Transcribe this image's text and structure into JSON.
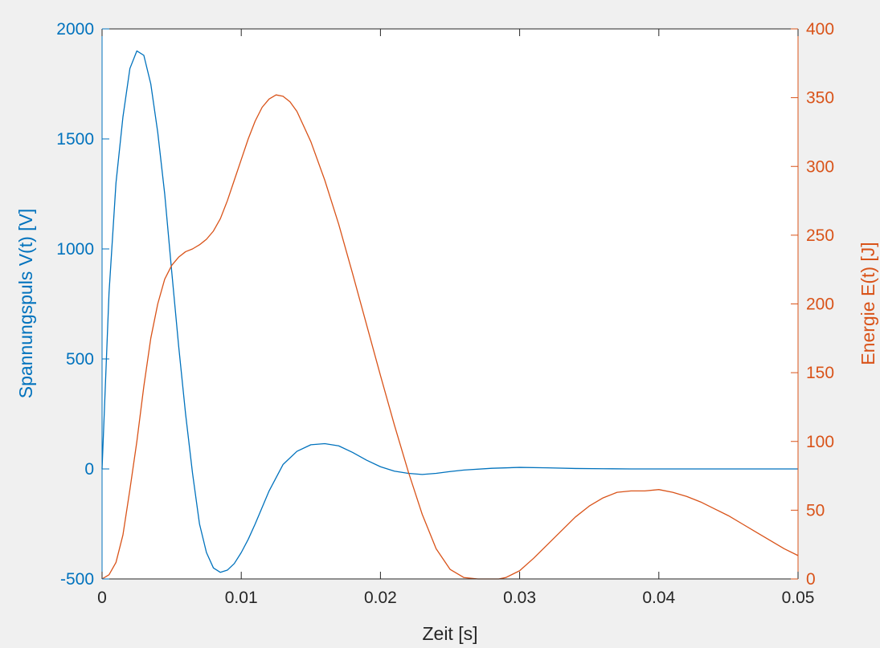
{
  "chart_data": {
    "type": "line",
    "title": "",
    "xlabel": "Zeit [s]",
    "ylabel_left": "Spannungspuls V(t) [V]",
    "ylabel_right": "Energie E(t) [J]",
    "xlim": [
      0,
      0.05
    ],
    "ylim_left": [
      -500,
      2000
    ],
    "ylim_right": [
      0,
      400
    ],
    "x_ticks": [
      "0",
      "0.01",
      "0.02",
      "0.03",
      "0.04",
      "0.05"
    ],
    "y_left_ticks": [
      "-500",
      "0",
      "500",
      "1000",
      "1500",
      "2000"
    ],
    "y_right_ticks": [
      "0",
      "50",
      "100",
      "150",
      "200",
      "250",
      "300",
      "350",
      "400"
    ],
    "grid": false,
    "colors": {
      "left": "#0072bd",
      "right": "#d95319"
    },
    "series": [
      {
        "axis": "left",
        "x": [
          0,
          0.0005,
          0.001,
          0.0015,
          0.002,
          0.0025,
          0.003,
          0.0035,
          0.004,
          0.0045,
          0.005,
          0.0055,
          0.006,
          0.0065,
          0.007,
          0.0075,
          0.008,
          0.0085,
          0.009,
          0.0095,
          0.01,
          0.0105,
          0.011,
          0.012,
          0.013,
          0.014,
          0.015,
          0.016,
          0.017,
          0.018,
          0.019,
          0.02,
          0.021,
          0.022,
          0.023,
          0.024,
          0.025,
          0.026,
          0.028,
          0.03,
          0.032,
          0.034,
          0.036,
          0.038,
          0.04,
          0.045,
          0.05
        ],
        "y": [
          0,
          800,
          1300,
          1600,
          1820,
          1900,
          1880,
          1750,
          1530,
          1250,
          900,
          560,
          250,
          -20,
          -250,
          -380,
          -450,
          -470,
          -460,
          -430,
          -380,
          -320,
          -250,
          -100,
          20,
          80,
          110,
          115,
          105,
          75,
          40,
          10,
          -10,
          -20,
          -25,
          -20,
          -12,
          -5,
          3,
          7,
          5,
          2,
          1,
          0,
          0,
          0,
          0
        ]
      },
      {
        "axis": "right",
        "x": [
          0,
          0.0005,
          0.001,
          0.0015,
          0.002,
          0.0025,
          0.003,
          0.0035,
          0.004,
          0.0045,
          0.005,
          0.0055,
          0.006,
          0.0065,
          0.007,
          0.0075,
          0.008,
          0.0085,
          0.009,
          0.0095,
          0.01,
          0.0105,
          0.011,
          0.0115,
          0.012,
          0.0125,
          0.013,
          0.0135,
          0.014,
          0.015,
          0.016,
          0.017,
          0.018,
          0.019,
          0.02,
          0.021,
          0.022,
          0.023,
          0.024,
          0.025,
          0.026,
          0.027,
          0.028,
          0.0285,
          0.029,
          0.03,
          0.031,
          0.032,
          0.033,
          0.034,
          0.035,
          0.036,
          0.037,
          0.038,
          0.039,
          0.04,
          0.041,
          0.042,
          0.043,
          0.044,
          0.045,
          0.046,
          0.047,
          0.048,
          0.049,
          0.05
        ],
        "y": [
          0,
          3,
          12,
          32,
          65,
          100,
          140,
          175,
          200,
          218,
          228,
          234,
          238,
          240,
          243,
          247,
          253,
          262,
          275,
          290,
          305,
          320,
          333,
          343,
          349,
          352,
          351,
          347,
          340,
          318,
          290,
          258,
          222,
          185,
          148,
          112,
          78,
          47,
          22,
          7,
          1,
          0,
          0,
          0,
          1,
          6,
          15,
          25,
          35,
          45,
          53,
          59,
          63,
          64,
          64,
          65,
          63,
          60,
          56,
          51,
          46,
          40,
          34,
          28,
          22,
          17
        ]
      }
    ]
  }
}
